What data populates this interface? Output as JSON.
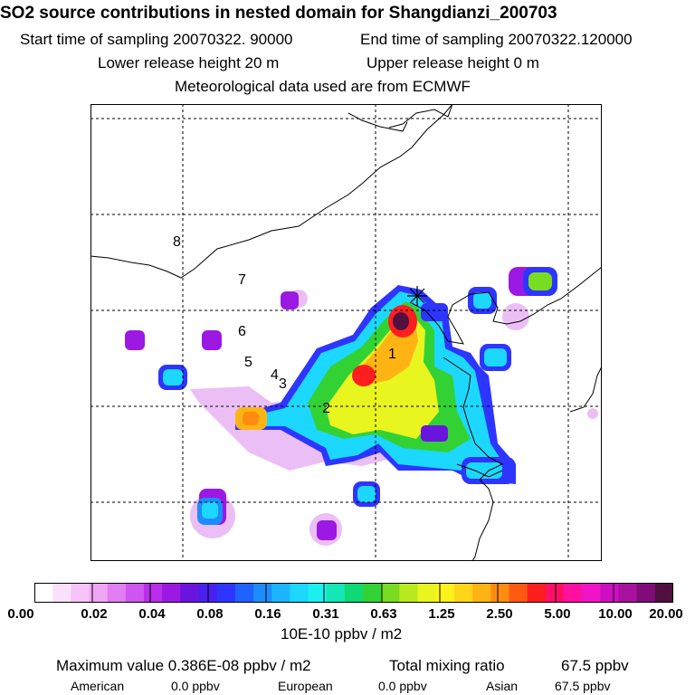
{
  "title": "SO2 source contributions in nested domain for Shangdianzi_200703",
  "sampling": {
    "start_label": "Start time of sampling 20070322. 90000",
    "end_label": "End time of sampling 20070322.120000"
  },
  "release": {
    "lower_label": "Lower release height   20 m",
    "upper_label": "Upper release height    0 m"
  },
  "meteo_label": "Meteorological data used are from ECMWF",
  "map": {
    "receptor_marker": "star-cross-icon",
    "source_labels": [
      "1",
      "2",
      "3",
      "4",
      "5",
      "6",
      "7",
      "8"
    ]
  },
  "colorbar": {
    "units": "10E-10 ppbv / m2",
    "tick_labels": [
      "0.00",
      "0.02",
      "0.04",
      "0.08",
      "0.16",
      "0.31",
      "0.63",
      "1.25",
      "2.50",
      "5.00",
      "10.00",
      "20.00"
    ],
    "colors": [
      "#ffffff",
      "#fbe0fb",
      "#f7c4f7",
      "#f0a5f5",
      "#e27df2",
      "#cf55ef",
      "#b92ee8",
      "#9b19e3",
      "#6a15de",
      "#4a20ee",
      "#2e35ff",
      "#1f62ff",
      "#1c8cff",
      "#1cb4ff",
      "#1cd8ff",
      "#1cf0ee",
      "#14e6b4",
      "#10d875",
      "#32d235",
      "#78dd22",
      "#b8ea1f",
      "#e8f51f",
      "#fff21c",
      "#ffd419",
      "#ffb414",
      "#ff8c10",
      "#ff5a10",
      "#ff1e1e",
      "#ff1064",
      "#ff10a0",
      "#f014c8",
      "#cc10c0",
      "#a8109e",
      "#800c78",
      "#501040"
    ]
  },
  "stats": {
    "max_label": "Maximum value  0.386E-08 ppbv / m2",
    "total_label": "Total mixing ratio",
    "total_value": "67.5 ppbv",
    "american_label": "American",
    "american_value": "0.0 ppbv",
    "european_label": "European",
    "european_value": "0.0 ppbv",
    "asian_label": "Asian",
    "asian_value": "67.5 ppbv"
  }
}
